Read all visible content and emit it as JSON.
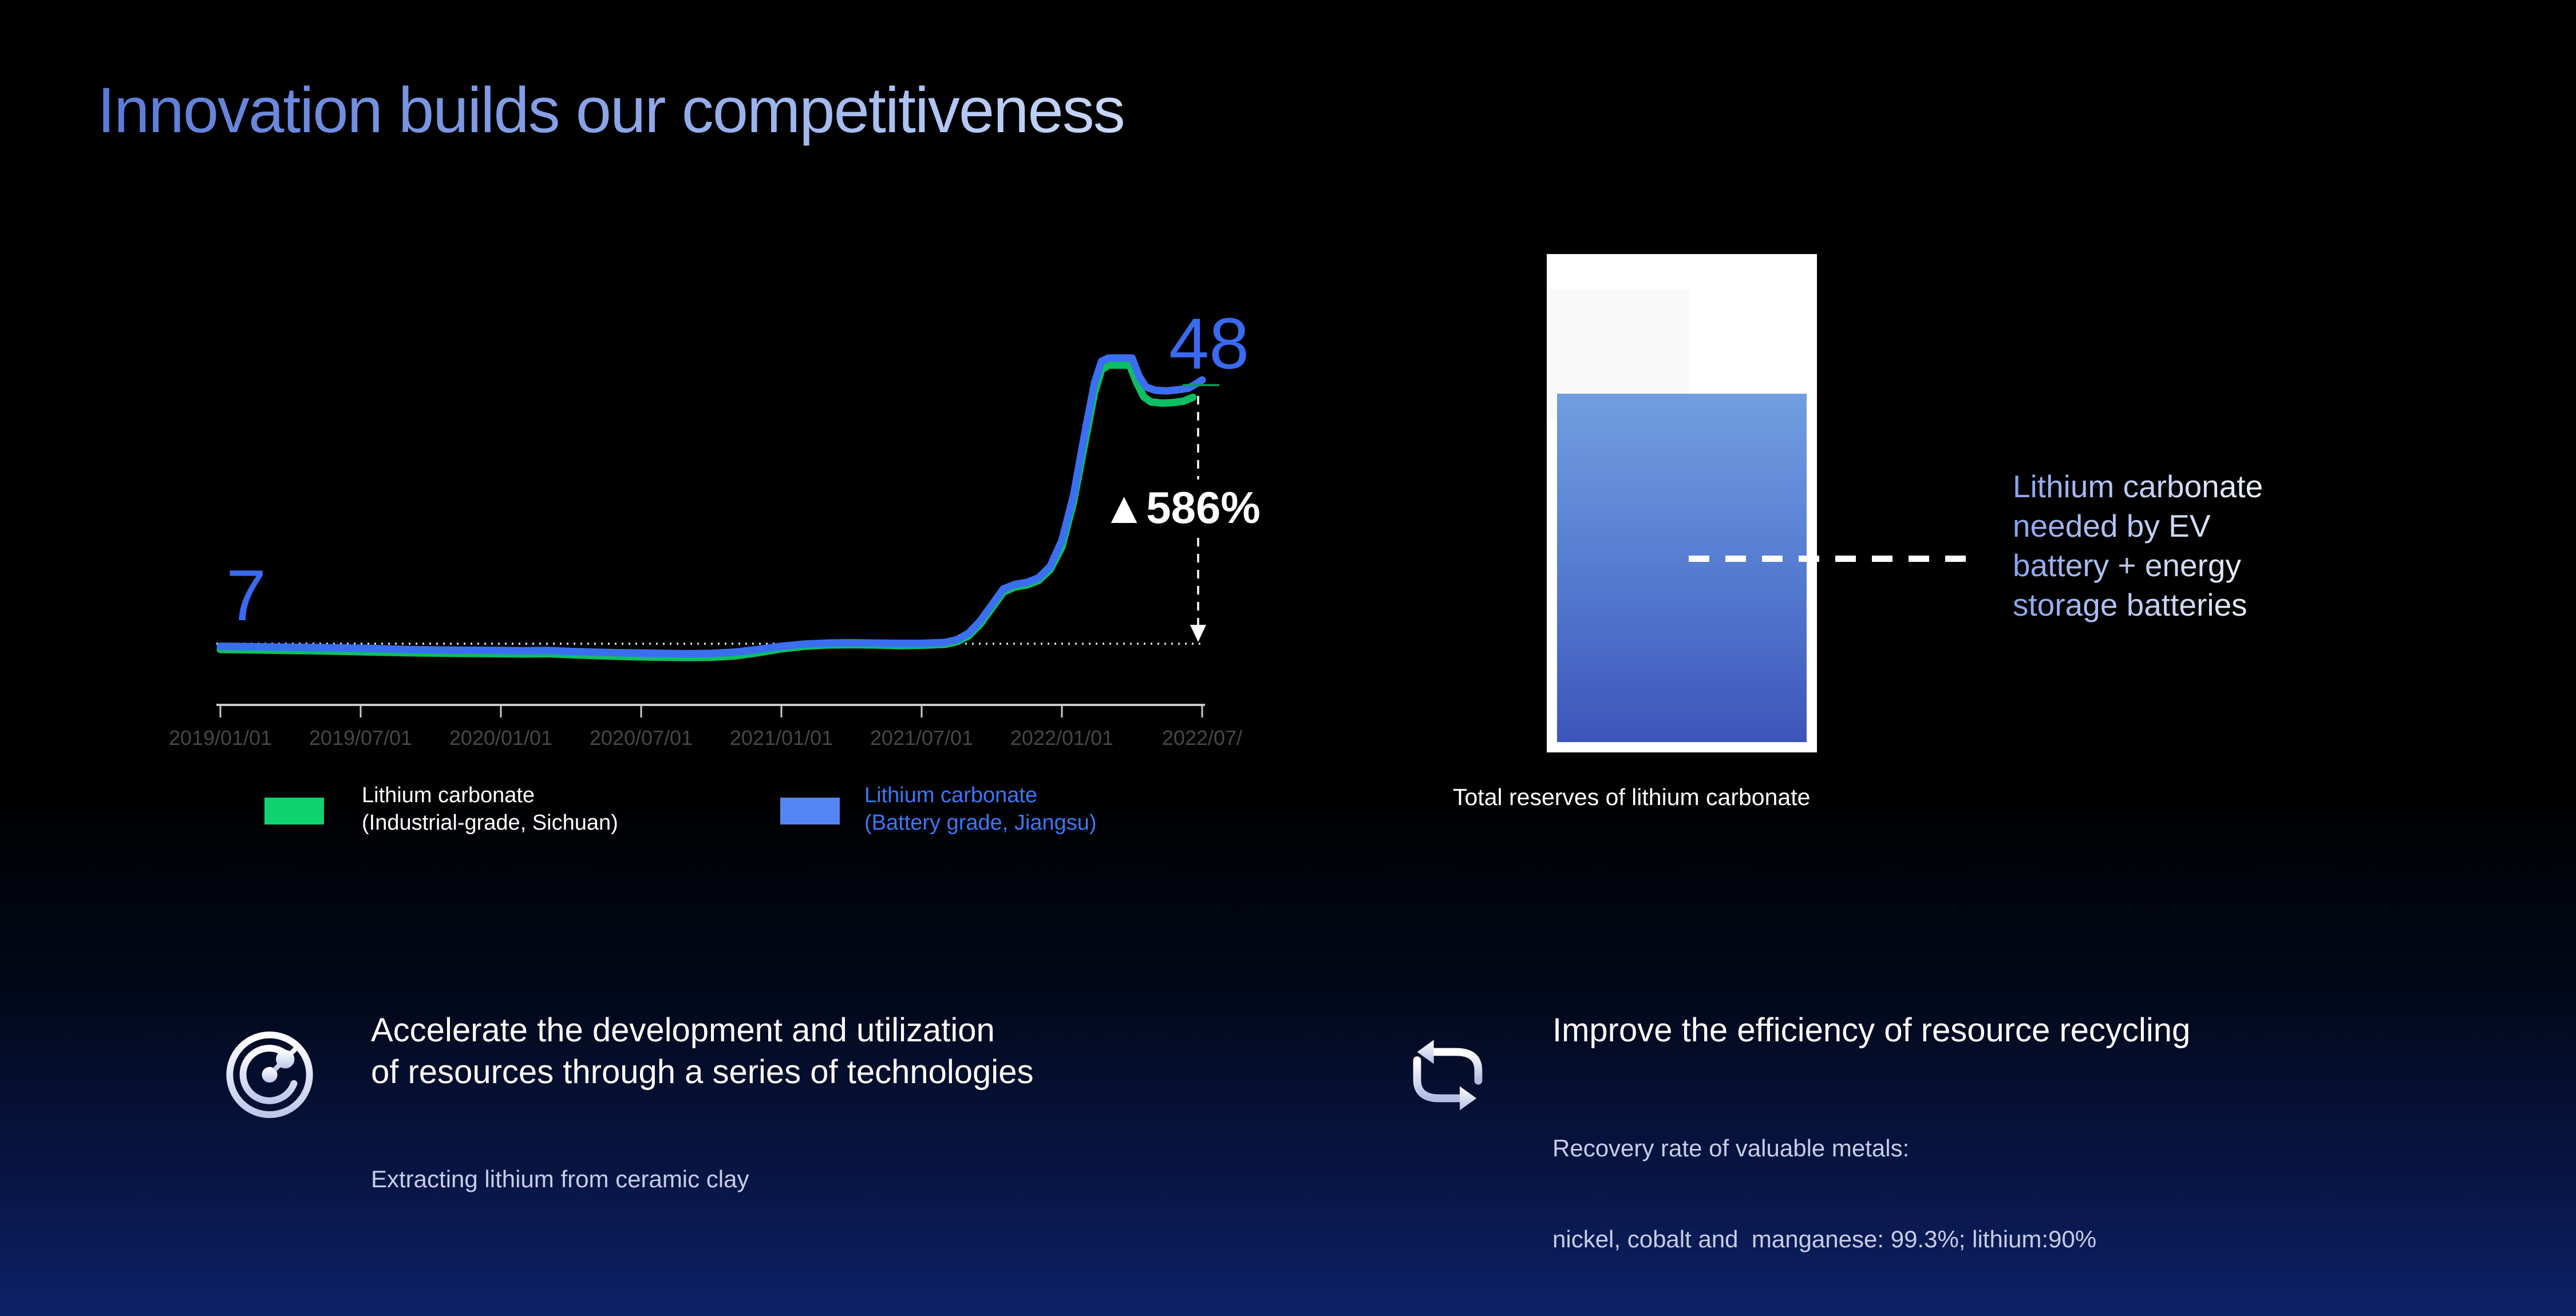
{
  "page": {
    "title": "Innovation builds our competitiveness"
  },
  "chart_data": {
    "type": "line",
    "x_tick_labels": [
      "2019/01/01",
      "2019/07/01",
      "2020/01/01",
      "2020/07/01",
      "2021/01/01",
      "2021/07/01",
      "2022/01/01",
      "2022/07/"
    ],
    "baseline_value": 7,
    "start_label": "7",
    "end_label": "48",
    "change_label": "▲586%",
    "x_axis": {
      "unit": "months since 2019/01",
      "range": [
        0,
        42
      ]
    },
    "y_axis": {
      "range_shown": [
        4.5,
        52
      ],
      "gridlines": "none",
      "reference_line_at": 7
    },
    "series": [
      {
        "name": "Lithium carbonate (Industrial-grade, Sichuan)",
        "color": "#0cbf62",
        "points": [
          [
            0,
            6.1
          ],
          [
            2,
            6.0
          ],
          [
            4,
            5.9
          ],
          [
            6,
            5.75
          ],
          [
            8,
            5.6
          ],
          [
            10,
            5.5
          ],
          [
            12,
            5.45
          ],
          [
            13,
            5.4
          ],
          [
            14,
            5.45
          ],
          [
            15,
            5.3
          ],
          [
            16,
            5.15
          ],
          [
            17,
            5.05
          ],
          [
            18,
            4.95
          ],
          [
            19,
            4.9
          ],
          [
            20,
            4.85
          ],
          [
            21,
            4.9
          ],
          [
            22,
            5.1
          ],
          [
            23,
            5.6
          ],
          [
            24,
            6.2
          ],
          [
            25,
            6.6
          ],
          [
            26,
            6.8
          ],
          [
            27,
            6.85
          ],
          [
            28,
            6.8
          ],
          [
            29,
            6.7
          ],
          [
            30,
            6.75
          ],
          [
            31,
            6.9
          ],
          [
            31.5,
            7.3
          ],
          [
            32,
            8.2
          ],
          [
            32.5,
            10.0
          ],
          [
            33,
            12.5
          ],
          [
            33.5,
            15.0
          ],
          [
            34,
            15.8
          ],
          [
            34.5,
            16.1
          ],
          [
            35,
            16.8
          ],
          [
            35.5,
            18.5
          ],
          [
            36,
            22.0
          ],
          [
            36.5,
            29.0
          ],
          [
            37,
            38.5
          ],
          [
            37.4,
            46.0
          ],
          [
            37.7,
            49.5
          ],
          [
            38,
            50.2
          ],
          [
            38.9,
            50.2
          ],
          [
            39.2,
            47.5
          ],
          [
            39.5,
            45.3
          ],
          [
            39.8,
            44.5
          ],
          [
            40.3,
            44.3
          ],
          [
            40.8,
            44.4
          ],
          [
            41.2,
            44.6
          ],
          [
            41.6,
            45.2
          ]
        ]
      },
      {
        "name": "Lithium carbonate (Battery grade, Jiangsu)",
        "color": "#3a6ff2",
        "points": [
          [
            0,
            6.6
          ],
          [
            2,
            6.5
          ],
          [
            4,
            6.4
          ],
          [
            6,
            6.3
          ],
          [
            8,
            6.1
          ],
          [
            10,
            6.0
          ],
          [
            12,
            5.95
          ],
          [
            13,
            5.9
          ],
          [
            14,
            5.95
          ],
          [
            15,
            5.8
          ],
          [
            16,
            5.7
          ],
          [
            17,
            5.6
          ],
          [
            18,
            5.55
          ],
          [
            19,
            5.5
          ],
          [
            20,
            5.45
          ],
          [
            21,
            5.5
          ],
          [
            22,
            5.7
          ],
          [
            23,
            6.1
          ],
          [
            24,
            6.6
          ],
          [
            25,
            6.95
          ],
          [
            26,
            7.1
          ],
          [
            27,
            7.15
          ],
          [
            28,
            7.1
          ],
          [
            29,
            7.05
          ],
          [
            30,
            7.05
          ],
          [
            31,
            7.2
          ],
          [
            31.5,
            7.6
          ],
          [
            32,
            8.6
          ],
          [
            32.5,
            10.5
          ],
          [
            33,
            13.0
          ],
          [
            33.5,
            15.5
          ],
          [
            34,
            16.2
          ],
          [
            34.5,
            16.5
          ],
          [
            35,
            17.2
          ],
          [
            35.5,
            19.0
          ],
          [
            36,
            23.0
          ],
          [
            36.5,
            30.0
          ],
          [
            37,
            40.0
          ],
          [
            37.4,
            47.5
          ],
          [
            37.7,
            50.8
          ],
          [
            38,
            51.3
          ],
          [
            39,
            51.3
          ],
          [
            39.3,
            48.5
          ],
          [
            39.6,
            46.8
          ],
          [
            40,
            46.3
          ],
          [
            40.5,
            46.2
          ],
          [
            41,
            46.4
          ],
          [
            41.4,
            46.6
          ],
          [
            41.7,
            47.2
          ],
          [
            42,
            47.9
          ]
        ]
      }
    ]
  },
  "legend": [
    {
      "line1": "Lithium carbonate",
      "line2": "(Industrial-grade, Sichuan)",
      "swatch_color": "#0ed36e",
      "text_color": "#ffffff"
    },
    {
      "line1": "Lithium carbonate",
      "line2": "(Battery grade, Jiangsu)",
      "swatch_color": "#5585f2",
      "text_color": "#3b77f6"
    }
  ],
  "reserve_panel": {
    "caption": "Total reserves of lithium carbonate",
    "note_lines": [
      "Lithium carbonate",
      "needed by EV",
      "battery + energy",
      "storage batteries"
    ]
  },
  "initiatives": [
    {
      "icon": "radar-icon",
      "heading_line1": "Accelerate the development and utilization",
      "heading_line2": "of resources through a series of technologies",
      "sub_line1": "Extracting lithium from ceramic clay",
      "sub_line2": ""
    },
    {
      "icon": "cycle-icon",
      "heading_line1": "Improve the efficiency of resource recycling",
      "heading_line2": "",
      "sub_line1": "Recovery rate of valuable metals:",
      "sub_line2": "nickel, cobalt and  manganese: 99.3%; lithium:90%"
    }
  ],
  "colors": {
    "accent_blue": "#3a6af0",
    "line_blue": "#3a6ff2",
    "line_green": "#0cbf62",
    "axis_gray": "#c9c9c9",
    "tick_label_gray": "#474747",
    "sub_text_lavender": "#c7cde6",
    "bottom_navy": "#0d2167",
    "bar_gradient_top": "#719ee0",
    "bar_gradient_bottom": "#3d55ba"
  }
}
